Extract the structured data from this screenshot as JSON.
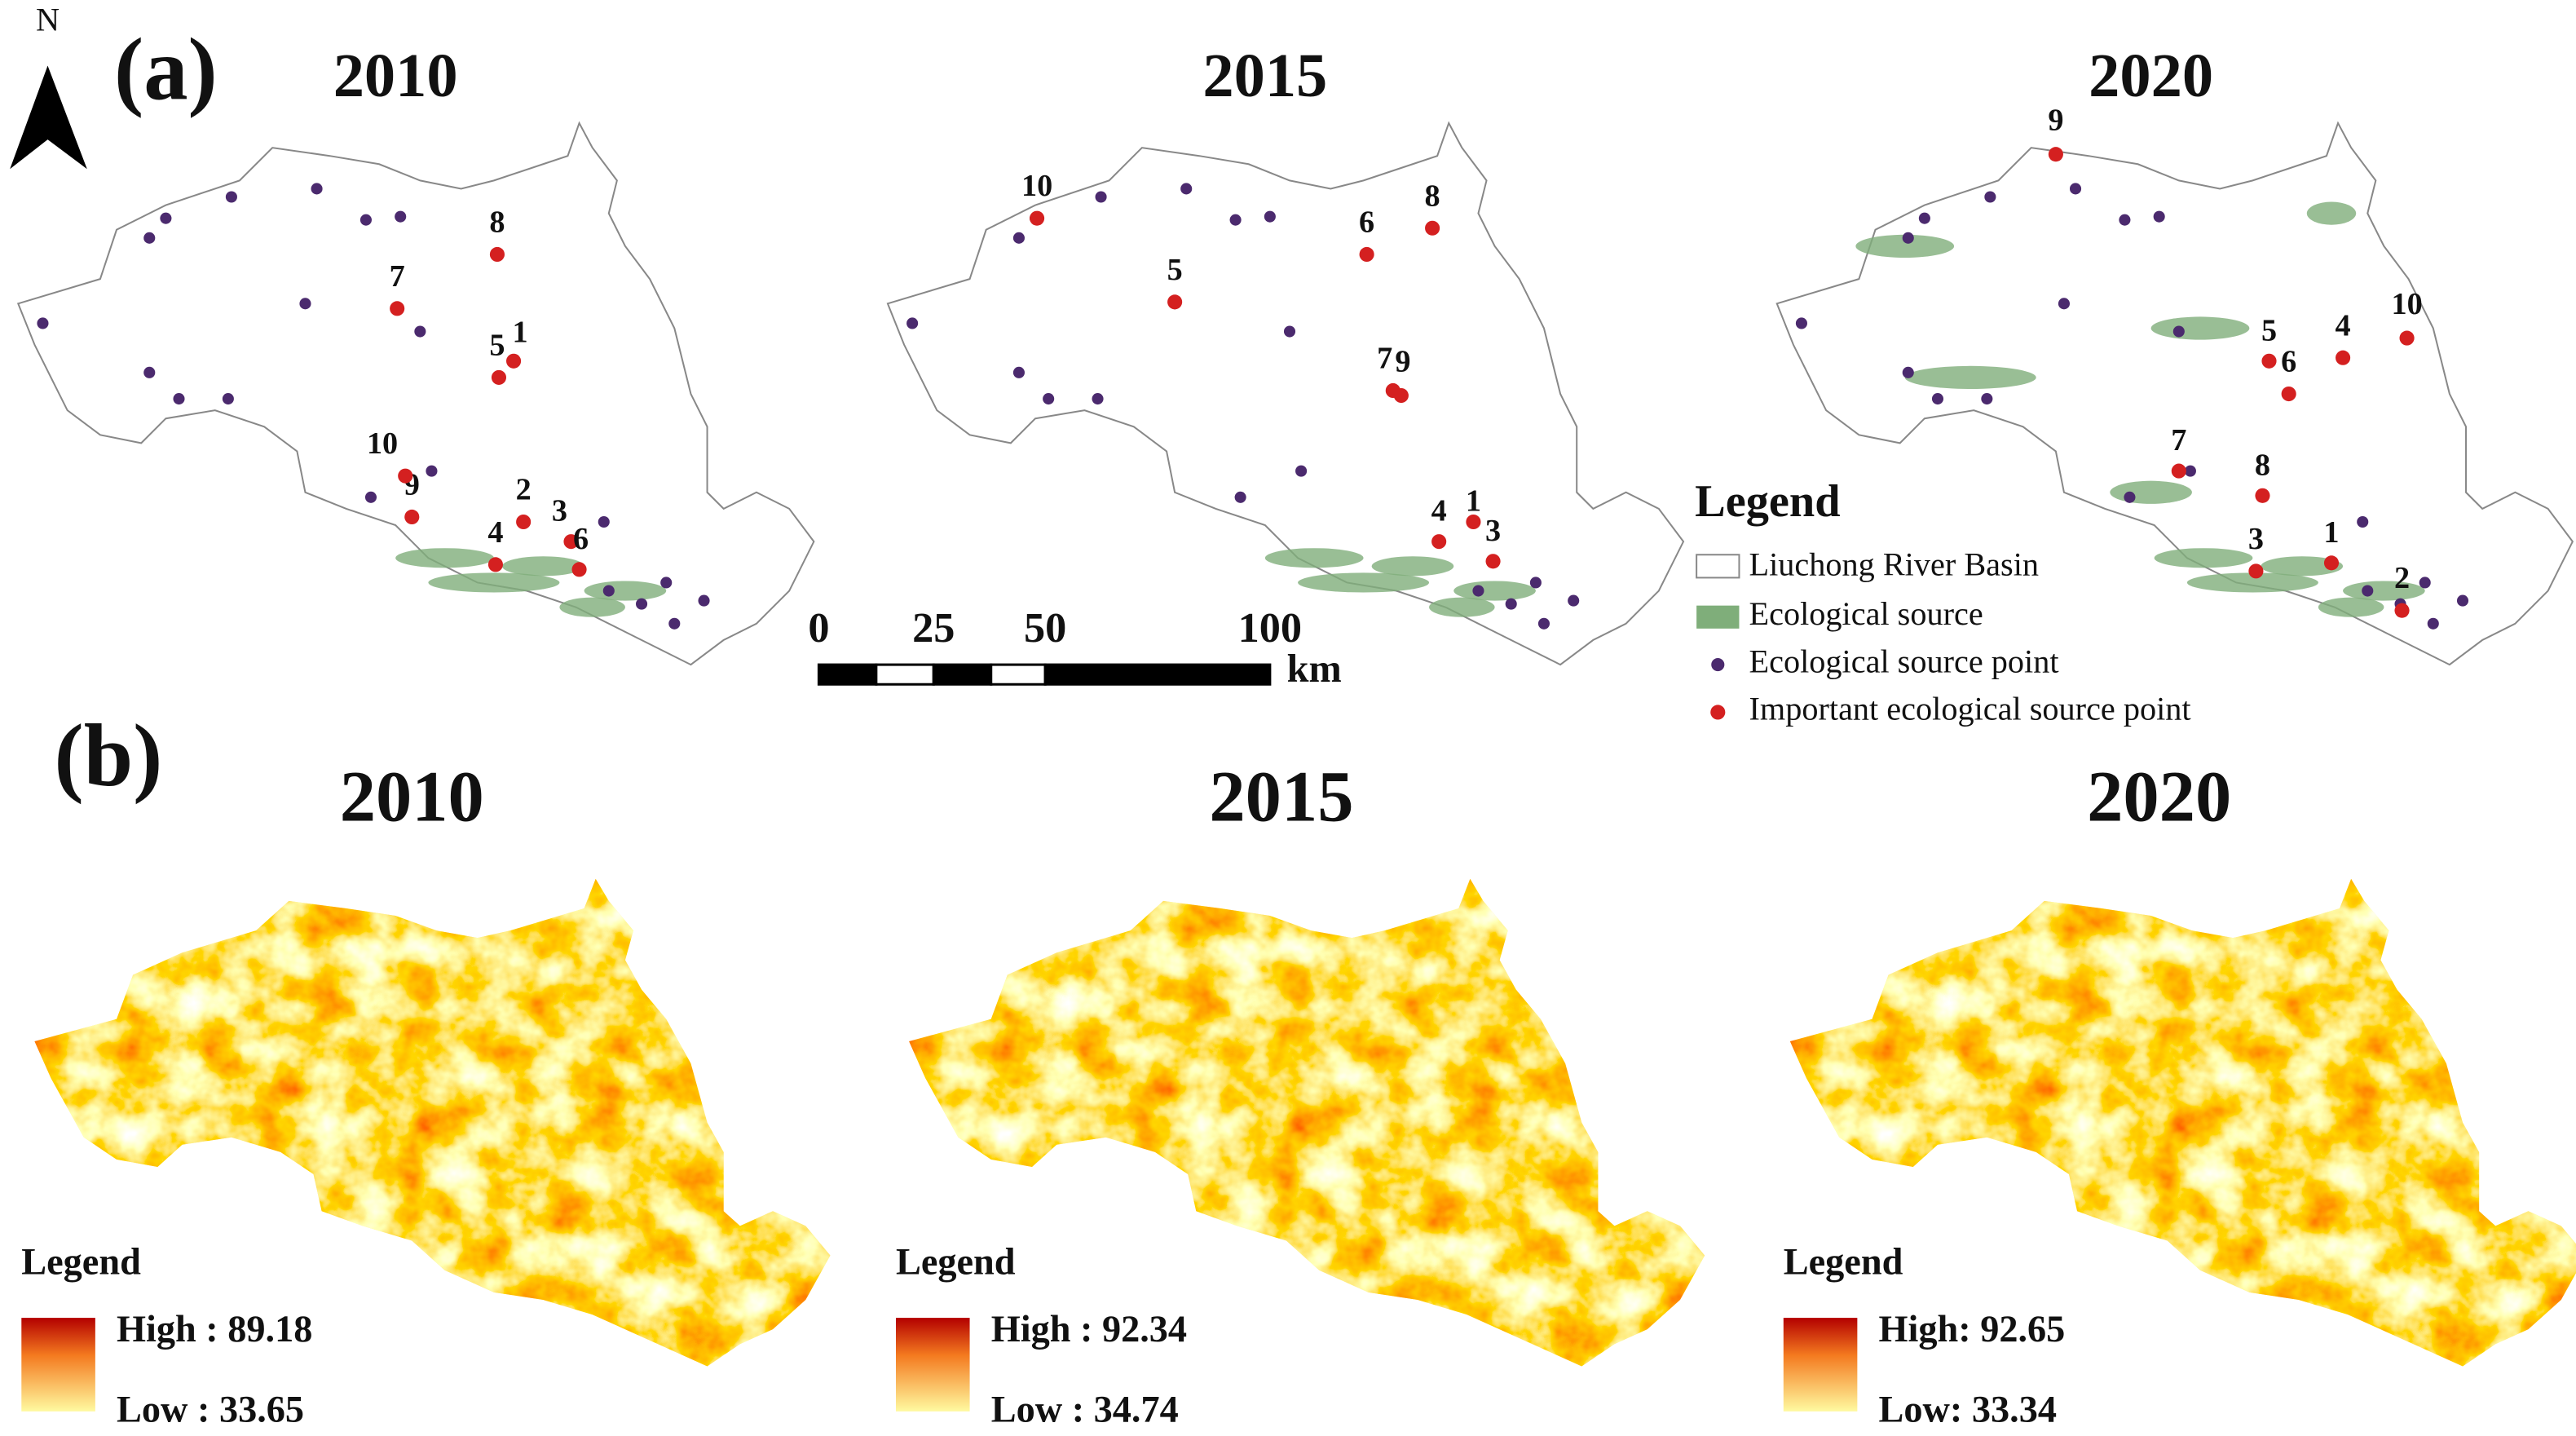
{
  "panel_a": {
    "label": "(a)",
    "north": "N",
    "maps": [
      {
        "year": "2010",
        "important_points": [
          "1",
          "2",
          "3",
          "4",
          "5",
          "6",
          "7",
          "8",
          "9",
          "10"
        ]
      },
      {
        "year": "2015",
        "important_points": [
          "1",
          "3",
          "4",
          "5",
          "6",
          "7",
          "8",
          "9",
          "10"
        ]
      },
      {
        "year": "2020",
        "important_points": [
          "1",
          "2",
          "3",
          "4",
          "5",
          "6",
          "7",
          "8",
          "9",
          "10"
        ]
      }
    ],
    "scale_bar": {
      "ticks": [
        0,
        25,
        50,
        100
      ],
      "unit": "km"
    },
    "legend": {
      "title": "Legend",
      "items": [
        "Liuchong River Basin",
        "Ecological source",
        "Ecological source point",
        "Important ecological source point"
      ]
    }
  },
  "panel_b": {
    "label": "(b)",
    "maps": [
      {
        "year": "2010",
        "legend_title": "Legend",
        "high": "High : 89.18",
        "low": "Low : 33.65"
      },
      {
        "year": "2015",
        "legend_title": "Legend",
        "high": "High : 92.34",
        "low": "Low : 34.74"
      },
      {
        "year": "2020",
        "legend_title": "Legend",
        "high": "High: 92.65",
        "low": "Low: 33.34"
      }
    ]
  }
}
